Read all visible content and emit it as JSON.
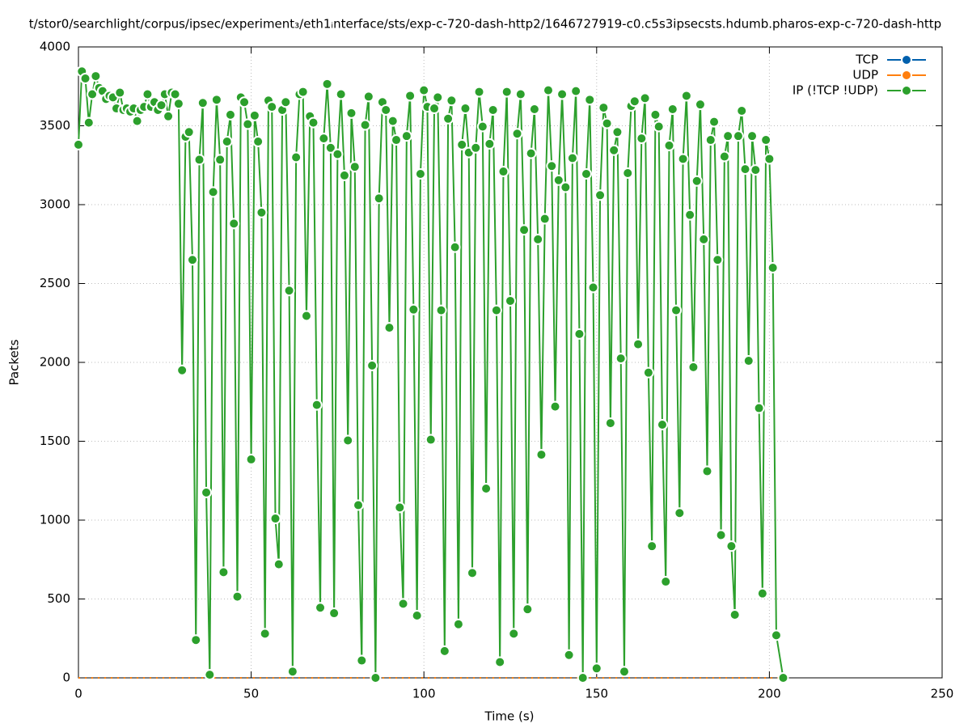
{
  "chart_data": {
    "type": "line",
    "title": "t/stor0/searchlight/corpus/ipsec/experiment₃/eth1ᵢnterface/sts/exp-c-720-dash-http2/1646727919-c0.c5s3ipsecsts.hdumb.pharos-exp-c-720-dash-http",
    "x_label": "Time (s)",
    "y_label": "Packets",
    "xlim": [
      0,
      250
    ],
    "xticks": [
      0,
      50,
      100,
      150,
      200,
      250
    ],
    "ylim": [
      0,
      4000
    ],
    "yticks": [
      0,
      500,
      1000,
      1500,
      2000,
      2500,
      3000,
      3500,
      4000
    ],
    "grid": true,
    "legend": "top-right",
    "x": [
      0,
      1,
      2,
      3,
      4,
      5,
      6,
      7,
      8,
      9,
      10,
      11,
      12,
      13,
      14,
      15,
      16,
      17,
      18,
      19,
      20,
      21,
      22,
      23,
      24,
      25,
      26,
      27,
      28,
      29,
      30,
      31,
      32,
      33,
      34,
      35,
      36,
      37,
      38,
      39,
      40,
      41,
      42,
      43,
      44,
      45,
      46,
      47,
      48,
      49,
      50,
      51,
      52,
      53,
      54,
      55,
      56,
      57,
      58,
      59,
      60,
      61,
      62,
      63,
      64,
      65,
      66,
      67,
      68,
      69,
      70,
      71,
      72,
      73,
      74,
      75,
      76,
      77,
      78,
      79,
      80,
      81,
      82,
      83,
      84,
      85,
      86,
      87,
      88,
      89,
      90,
      91,
      92,
      93,
      94,
      95,
      96,
      97,
      98,
      99,
      100,
      101,
      102,
      103,
      104,
      105,
      106,
      107,
      108,
      109,
      110,
      111,
      112,
      113,
      114,
      115,
      116,
      117,
      118,
      119,
      120,
      121,
      122,
      123,
      124,
      125,
      126,
      127,
      128,
      129,
      130,
      131,
      132,
      133,
      134,
      135,
      136,
      137,
      138,
      139,
      140,
      141,
      142,
      143,
      144,
      145,
      146,
      147,
      148,
      149,
      150,
      151,
      152,
      153,
      154,
      155,
      156,
      157,
      158,
      159,
      160,
      161,
      162,
      163,
      164,
      165,
      166,
      167,
      168,
      169,
      170,
      171,
      172,
      173,
      174,
      175,
      176,
      177,
      178,
      179,
      180,
      181,
      182,
      183,
      184,
      185,
      186,
      187,
      188,
      189,
      190,
      191,
      192,
      193,
      194,
      195,
      196,
      197,
      198,
      199,
      200,
      201,
      202,
      204
    ],
    "series": [
      {
        "name": "TCP",
        "color": "#0060ad",
        "values": [
          0,
          0,
          0,
          0,
          0,
          0,
          0,
          0,
          0,
          0,
          0,
          0,
          0,
          0,
          0,
          0,
          0,
          0,
          0,
          0,
          0,
          0,
          0,
          0,
          0,
          0,
          0,
          0,
          0,
          0,
          0,
          0,
          0,
          0,
          0,
          0,
          0,
          0,
          0,
          0,
          0,
          0,
          0,
          0,
          0,
          0,
          0,
          0,
          0,
          0,
          0,
          0,
          0,
          0,
          0,
          0,
          0,
          0,
          0,
          0,
          0,
          0,
          0,
          0,
          0,
          0,
          0,
          0,
          0,
          0,
          0,
          0,
          0,
          0,
          0,
          0,
          0,
          0,
          0,
          0,
          0,
          0,
          0,
          0,
          0,
          0,
          0,
          0,
          0,
          0,
          0,
          0,
          0,
          0,
          0,
          0,
          0,
          0,
          0,
          0,
          0,
          0,
          0,
          0,
          0,
          0,
          0,
          0,
          0,
          0,
          0,
          0,
          0,
          0,
          0,
          0,
          0,
          0,
          0,
          0,
          0,
          0,
          0,
          0,
          0,
          0,
          0,
          0,
          0,
          0,
          0,
          0,
          0,
          0,
          0,
          0,
          0,
          0,
          0,
          0,
          0,
          0,
          0,
          0,
          0,
          0,
          0,
          0,
          0,
          0,
          0,
          0,
          0,
          0,
          0,
          0,
          0,
          0,
          0,
          0,
          0,
          0,
          0,
          0,
          0,
          0,
          0,
          0,
          0,
          0,
          0,
          0,
          0,
          0,
          0,
          0,
          0,
          0,
          0,
          0,
          0,
          0,
          0,
          0,
          0,
          0,
          0,
          0,
          0,
          0,
          0,
          0,
          0,
          0,
          0,
          0,
          0,
          0,
          0,
          0,
          0,
          0,
          0,
          0
        ]
      },
      {
        "name": "UDP",
        "color": "#ff7f0e",
        "values": [
          0,
          0,
          0,
          0,
          0,
          0,
          0,
          0,
          0,
          0,
          0,
          0,
          0,
          0,
          0,
          0,
          0,
          0,
          0,
          0,
          0,
          0,
          0,
          0,
          0,
          0,
          0,
          0,
          0,
          0,
          0,
          0,
          0,
          0,
          0,
          0,
          0,
          0,
          0,
          0,
          0,
          0,
          0,
          0,
          0,
          0,
          0,
          0,
          0,
          0,
          0,
          0,
          0,
          0,
          0,
          0,
          0,
          0,
          0,
          0,
          0,
          0,
          0,
          0,
          0,
          0,
          0,
          0,
          0,
          0,
          0,
          0,
          0,
          0,
          0,
          0,
          0,
          0,
          0,
          0,
          0,
          0,
          0,
          0,
          0,
          0,
          0,
          0,
          0,
          0,
          0,
          0,
          0,
          0,
          0,
          0,
          0,
          0,
          0,
          0,
          0,
          0,
          0,
          0,
          0,
          0,
          0,
          0,
          0,
          0,
          0,
          0,
          0,
          0,
          0,
          0,
          0,
          0,
          0,
          0,
          0,
          0,
          0,
          0,
          0,
          0,
          0,
          0,
          0,
          0,
          0,
          0,
          0,
          0,
          0,
          0,
          0,
          0,
          0,
          0,
          0,
          0,
          0,
          0,
          0,
          0,
          0,
          0,
          0,
          0,
          0,
          0,
          0,
          0,
          0,
          0,
          0,
          0,
          0,
          0,
          0,
          0,
          0,
          0,
          0,
          0,
          0,
          0,
          0,
          0,
          0,
          0,
          0,
          0,
          0,
          0,
          0,
          0,
          0,
          0,
          0,
          0,
          0,
          0,
          0,
          0,
          0,
          0,
          0,
          0,
          0,
          0,
          0,
          0,
          0,
          0,
          0,
          0,
          0,
          0,
          0,
          0,
          0,
          0
        ]
      },
      {
        "name": "IP (!TCP  !UDP)",
        "color": "#2ca02c",
        "values": [
          3380,
          3845,
          3800,
          3520,
          3700,
          3815,
          3740,
          3720,
          3670,
          3690,
          3680,
          3610,
          3710,
          3600,
          3610,
          3590,
          3610,
          3530,
          3600,
          3620,
          3700,
          3620,
          3650,
          3600,
          3630,
          3700,
          3560,
          3710,
          3700,
          3640,
          1950,
          3430,
          3460,
          2650,
          240,
          3285,
          3645,
          1175,
          20,
          3080,
          3665,
          3285,
          670,
          3400,
          3570,
          2880,
          515,
          3680,
          3650,
          3510,
          1385,
          3565,
          3400,
          2950,
          280,
          3660,
          3620,
          1010,
          720,
          3600,
          3650,
          2455,
          40,
          3300,
          3700,
          3715,
          2295,
          3560,
          3520,
          1730,
          445,
          3420,
          3765,
          3360,
          410,
          3320,
          3700,
          3185,
          1505,
          3580,
          3240,
          1095,
          110,
          3505,
          3685,
          1980,
          0,
          3040,
          3650,
          3600,
          2220,
          3530,
          3410,
          1080,
          470,
          3435,
          3690,
          2335,
          395,
          3195,
          3725,
          3620,
          1510,
          3610,
          3680,
          2330,
          170,
          3545,
          3660,
          2730,
          340,
          3380,
          3610,
          3330,
          665,
          3360,
          3715,
          3495,
          1200,
          3385,
          3600,
          2330,
          100,
          3210,
          3715,
          2390,
          280,
          3450,
          3700,
          2840,
          435,
          3325,
          3605,
          2780,
          1415,
          2910,
          3725,
          3245,
          1720,
          3155,
          3700,
          3110,
          145,
          3295,
          3720,
          2180,
          0,
          3195,
          3665,
          2475,
          60,
          3060,
          3615,
          3515,
          1615,
          3345,
          3460,
          2025,
          40,
          3200,
          3625,
          3655,
          2115,
          3420,
          3675,
          1935,
          835,
          3570,
          3495,
          1605,
          610,
          3375,
          3605,
          2330,
          1045,
          3290,
          3690,
          2935,
          1970,
          3150,
          3635,
          2780,
          1310,
          3410,
          3525,
          2650,
          905,
          3305,
          3435,
          835,
          400,
          3435,
          3595,
          3225,
          2010,
          3435,
          3220,
          1710,
          535,
          3410,
          3290,
          2600,
          270,
          0
        ]
      }
    ]
  }
}
